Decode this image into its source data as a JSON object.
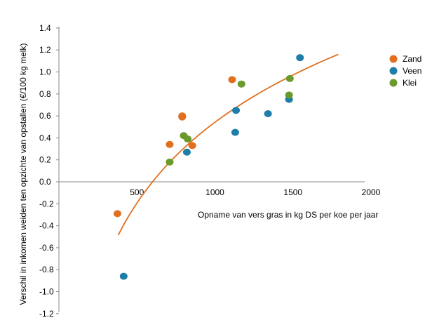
{
  "chart_data": {
    "type": "scatter",
    "xlabel": "Opname van vers gras in kg DS per koe per jaar",
    "ylabel": "Verschil in inkomen weiden ten opzichte van opstallen (€/100 kg melk)",
    "xlim": [
      0,
      2000
    ],
    "ylim": [
      -1.2,
      1.5
    ],
    "x_ticks": [
      500,
      1000,
      1500,
      2000
    ],
    "y_ticks": [
      1.4,
      1.2,
      1.0,
      0.8,
      0.6,
      0.4,
      0.2,
      0.0,
      -0.2,
      -0.4,
      -0.6,
      -0.8,
      -1.0,
      -1.2
    ],
    "x_tick_labels": [
      "500",
      "1000",
      "1500",
      "2000"
    ],
    "y_tick_labels": [
      "1.4",
      "1.2",
      "1.0",
      "0.8",
      "0.6",
      "0.4",
      "0.2",
      "0.0",
      "-0.2",
      "-0.4",
      "-0.6",
      "-0.8",
      "-1.0",
      "-1.2"
    ],
    "legend_position": "right",
    "grid": false,
    "series": [
      {
        "name": "Zand",
        "color": "#e07020",
        "points": [
          {
            "x": 375,
            "y": -0.29
          },
          {
            "x": 710,
            "y": 0.34
          },
          {
            "x": 790,
            "y": 0.6
          },
          {
            "x": 790,
            "y": 0.59
          },
          {
            "x": 855,
            "y": 0.33
          },
          {
            "x": 1110,
            "y": 0.93
          }
        ]
      },
      {
        "name": "Veen",
        "color": "#1f7ea8",
        "points": [
          {
            "x": 415,
            "y": -0.86
          },
          {
            "x": 820,
            "y": 0.27
          },
          {
            "x": 1130,
            "y": 0.45
          },
          {
            "x": 1135,
            "y": 0.65
          },
          {
            "x": 1340,
            "y": 0.62
          },
          {
            "x": 1475,
            "y": 0.75
          },
          {
            "x": 1545,
            "y": 1.13
          }
        ]
      },
      {
        "name": "Klei",
        "color": "#6a9a2a",
        "points": [
          {
            "x": 710,
            "y": 0.18
          },
          {
            "x": 800,
            "y": 0.42
          },
          {
            "x": 825,
            "y": 0.39
          },
          {
            "x": 1170,
            "y": 0.89
          },
          {
            "x": 1475,
            "y": 0.79
          },
          {
            "x": 1480,
            "y": 0.94
          }
        ]
      }
    ],
    "trendline": {
      "type": "logarithmic",
      "color": "#e07020",
      "x_range": [
        380,
        1790
      ]
    }
  }
}
